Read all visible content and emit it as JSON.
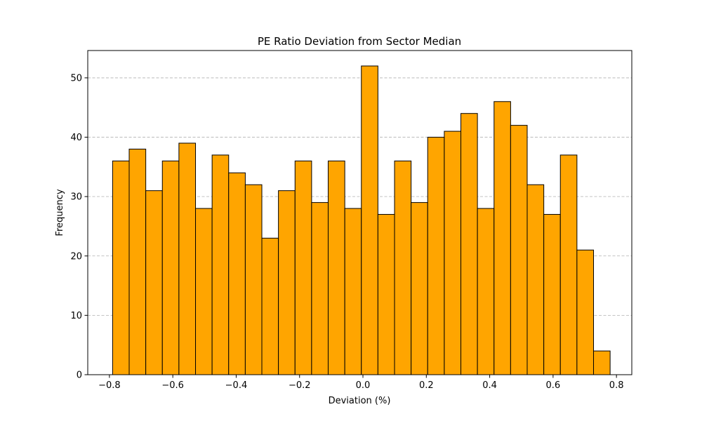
{
  "chart_data": {
    "type": "bar",
    "title": "PE Ratio Deviation from Sector Median",
    "xlabel": "Deviation (%)",
    "ylabel": "Frequency",
    "bin_edges": [
      -0.79,
      -0.7377,
      -0.6853,
      -0.633,
      -0.5807,
      -0.5283,
      -0.476,
      -0.4237,
      -0.3713,
      -0.319,
      -0.2667,
      -0.2143,
      -0.162,
      -0.1097,
      -0.0573,
      -0.005,
      0.0473,
      0.0997,
      0.152,
      0.2043,
      0.2567,
      0.309,
      0.3613,
      0.4137,
      0.466,
      0.5183,
      0.5707,
      0.623,
      0.6753,
      0.7277,
      0.78
    ],
    "values": [
      36,
      38,
      31,
      36,
      39,
      28,
      37,
      34,
      32,
      23,
      31,
      36,
      29,
      36,
      28,
      52,
      27,
      36,
      29,
      40,
      41,
      44,
      28,
      46,
      42,
      32,
      27,
      37,
      21,
      4
    ],
    "xlim": [
      -0.8684,
      0.8484
    ],
    "ylim": [
      0,
      54.6
    ],
    "xticks": [
      -0.8,
      -0.6,
      -0.4,
      -0.2,
      0.0,
      0.2,
      0.4,
      0.6,
      0.8
    ],
    "xtick_labels": [
      "−0.8",
      "−0.6",
      "−0.4",
      "−0.2",
      "0.0",
      "0.2",
      "0.4",
      "0.6",
      "0.8"
    ],
    "yticks": [
      0,
      10,
      20,
      30,
      40,
      50
    ],
    "ytick_labels": [
      "0",
      "10",
      "20",
      "30",
      "40",
      "50"
    ],
    "grid": "y-dashed",
    "bar_color": "#ffa500",
    "edge_color": "#000000"
  }
}
